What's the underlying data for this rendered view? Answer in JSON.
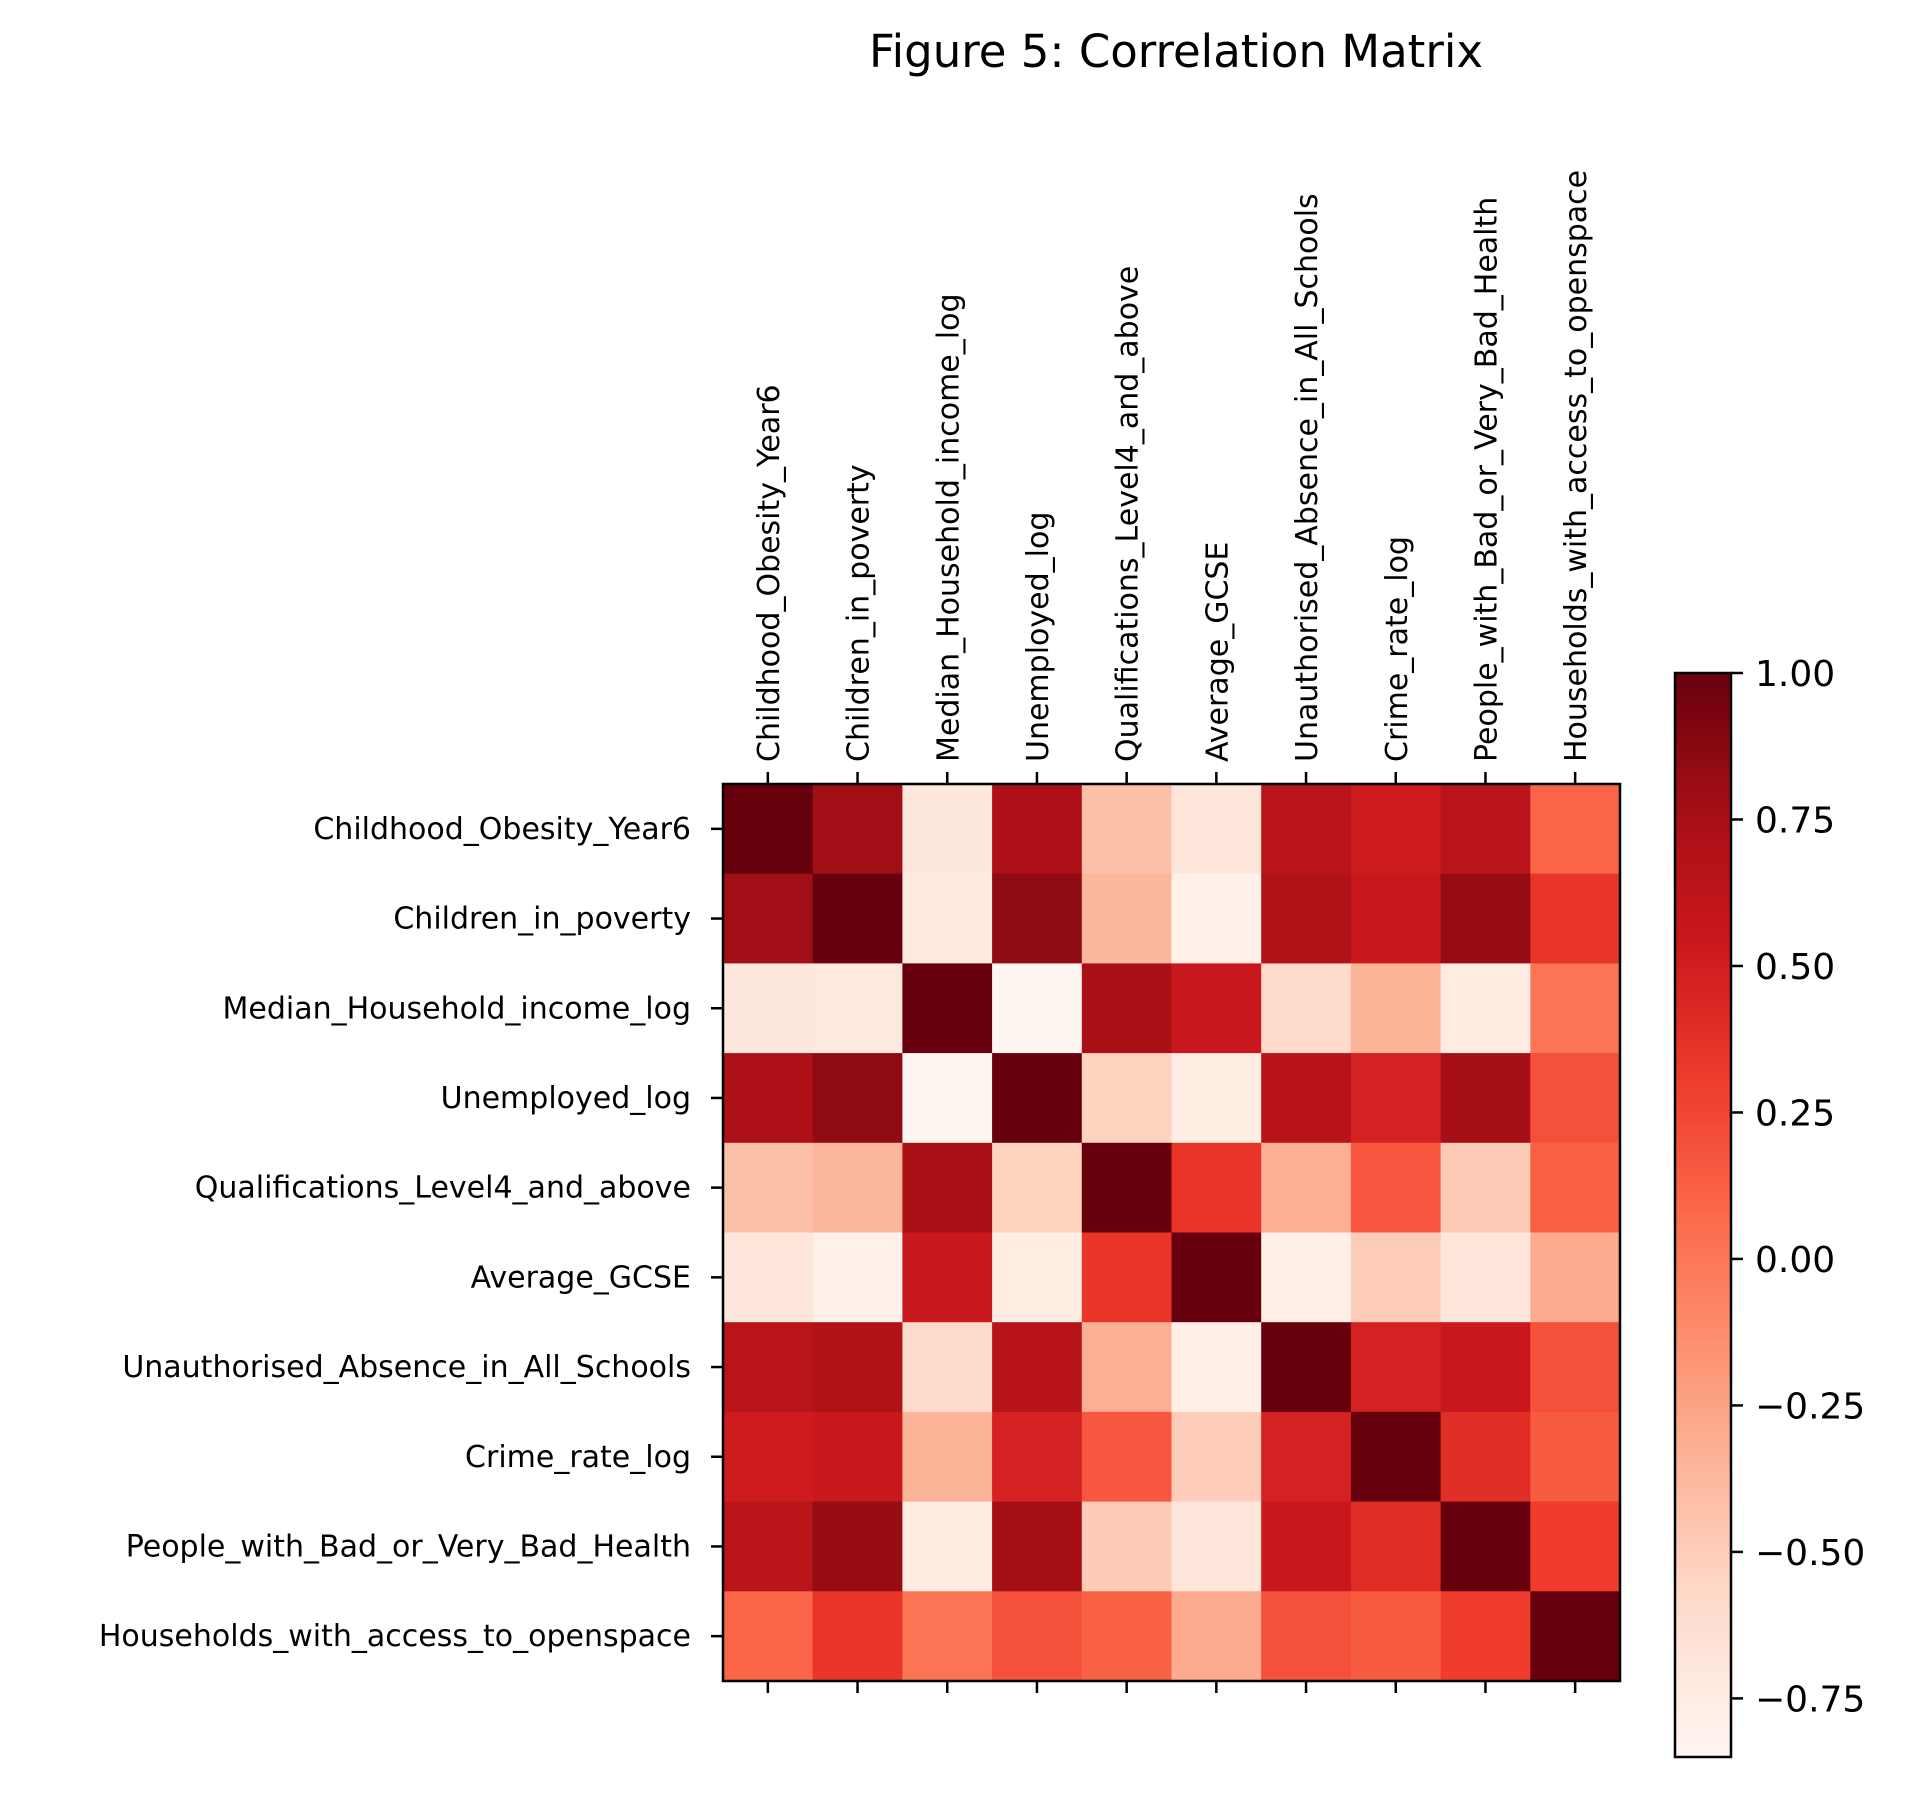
{
  "chart_data": {
    "type": "heatmap",
    "title": "Figure 5: Correlation Matrix",
    "variables": [
      "Childhood_Obesity_Year6",
      "Children_in_poverty",
      "Median_Household_income_log",
      "Unemployed_log",
      "Qualifications_Level4_and_above",
      "Average_GCSE",
      "Unauthorised_Absence_in_All_Schools",
      "Crime_rate_log",
      "People_with_Bad_or_Very_Bad_Health",
      "Households_with_access_to_openspace"
    ],
    "matrix": [
      [
        1.0,
        0.78,
        -0.7,
        0.72,
        -0.42,
        -0.68,
        0.65,
        0.52,
        0.65,
        0.1
      ],
      [
        0.78,
        1.0,
        -0.72,
        0.85,
        -0.36,
        -0.8,
        0.7,
        0.55,
        0.82,
        0.35
      ],
      [
        -0.7,
        -0.72,
        1.0,
        -0.85,
        0.75,
        0.55,
        -0.58,
        -0.35,
        -0.74,
        0.02
      ],
      [
        0.72,
        0.85,
        -0.85,
        1.0,
        -0.53,
        -0.75,
        0.66,
        0.48,
        0.76,
        0.2
      ],
      [
        -0.42,
        -0.36,
        0.75,
        -0.53,
        1.0,
        0.35,
        -0.32,
        0.17,
        -0.48,
        0.12
      ],
      [
        -0.68,
        -0.8,
        0.55,
        -0.75,
        0.35,
        1.0,
        -0.78,
        -0.5,
        -0.68,
        -0.3
      ],
      [
        0.65,
        0.7,
        -0.58,
        0.66,
        -0.32,
        -0.78,
        1.0,
        0.48,
        0.55,
        0.2
      ],
      [
        0.52,
        0.55,
        -0.35,
        0.48,
        0.17,
        -0.5,
        0.48,
        1.0,
        0.4,
        0.15
      ],
      [
        0.65,
        0.82,
        -0.74,
        0.76,
        -0.48,
        -0.68,
        0.55,
        0.4,
        1.0,
        0.3
      ],
      [
        0.1,
        0.35,
        0.02,
        0.2,
        0.12,
        -0.3,
        0.2,
        0.15,
        0.3,
        1.0
      ]
    ],
    "colorbar": {
      "colormap": "Reds",
      "min": -0.85,
      "max": 1.0,
      "ticks": [
        1.0,
        0.75,
        0.5,
        0.25,
        0.0,
        -0.25,
        -0.5,
        -0.75
      ],
      "tick_labels": [
        "1.00",
        "0.75",
        "0.50",
        "0.25",
        "0.00",
        "−0.25",
        "−0.50",
        "−0.75"
      ]
    },
    "xlabel": "",
    "ylabel": "",
    "x_tick_position": "top",
    "grid": false,
    "legend": "colorbar-right"
  }
}
